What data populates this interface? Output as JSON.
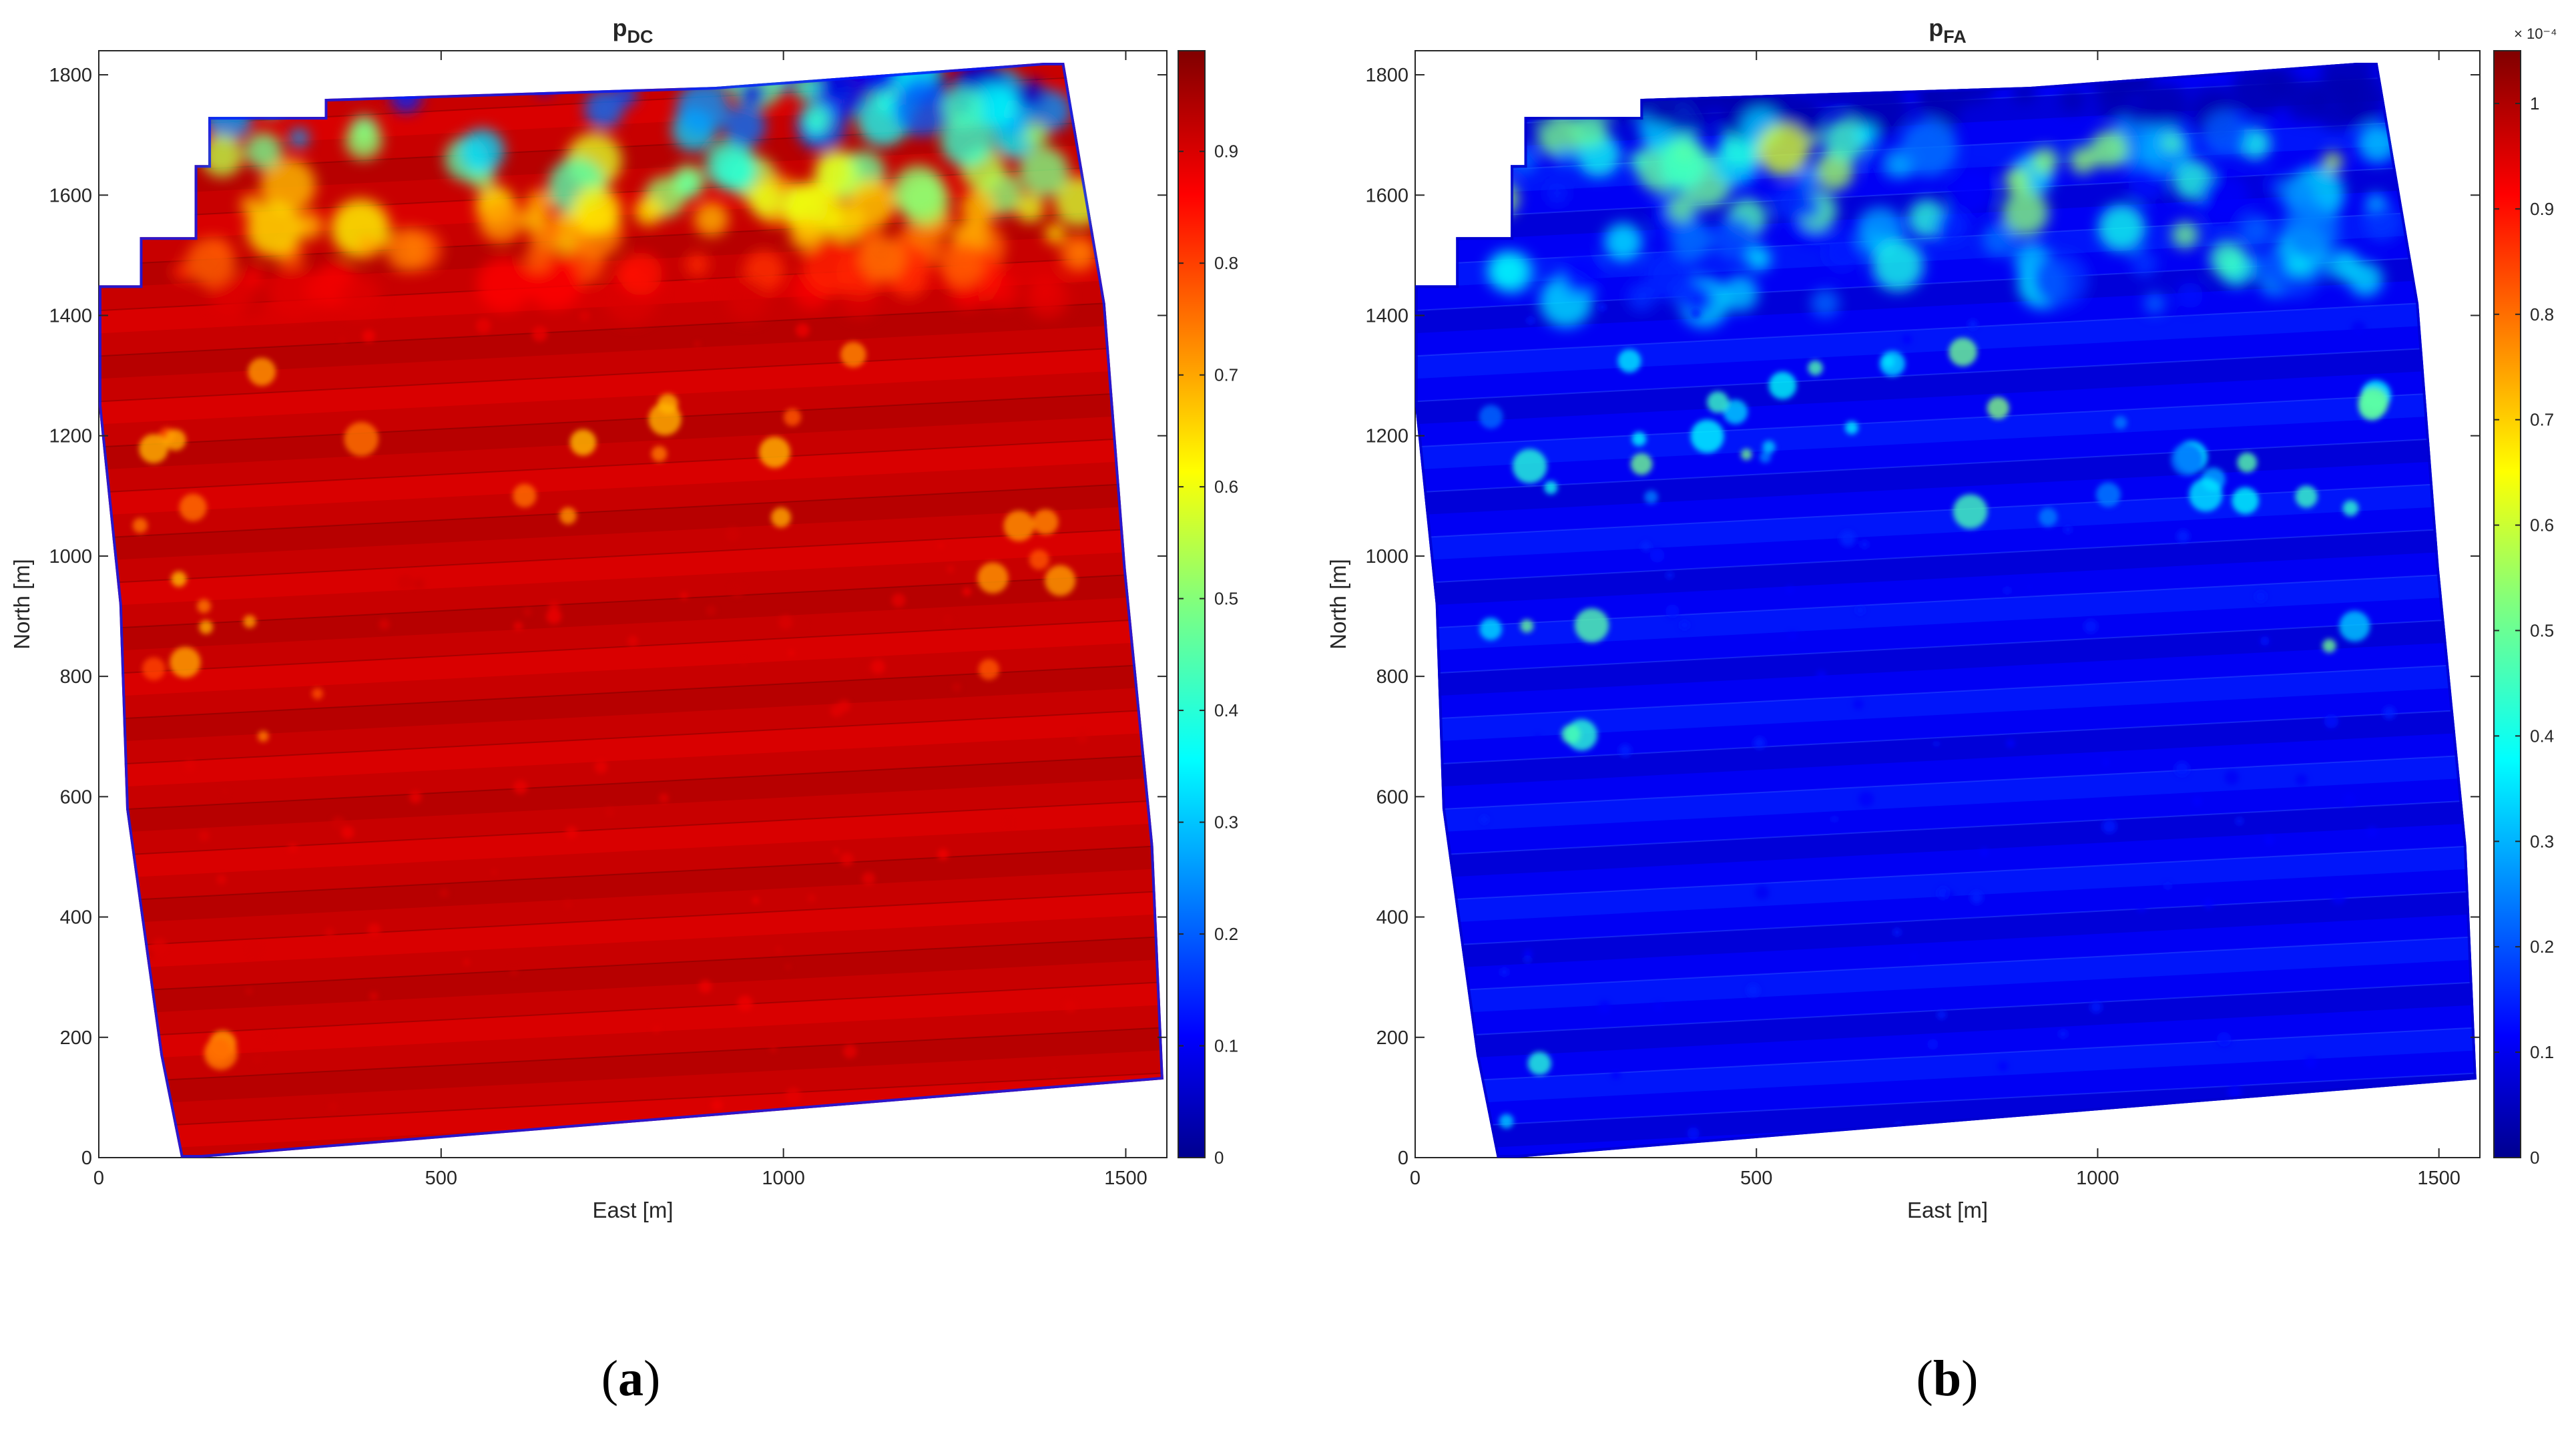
{
  "colors": {
    "axis": "#262626",
    "map_high": "#b0100a",
    "map_low": "#0d2fd8"
  },
  "chart_data": [
    {
      "type": "heatmap",
      "panel_label": "a",
      "title_base": "p",
      "title_sub": "DC",
      "xlabel": "East [m]",
      "ylabel": "North [m]",
      "xlim": [
        0,
        1560
      ],
      "ylim": [
        0,
        1840
      ],
      "xticks": [
        0,
        500,
        1000,
        1500
      ],
      "yticks": [
        0,
        200,
        400,
        600,
        800,
        1000,
        1200,
        1400,
        1600,
        1800
      ],
      "colorbar": {
        "colormap": "jet",
        "min": 0,
        "max": 0.99,
        "ticks": [
          0,
          0.1,
          0.2,
          0.3,
          0.4,
          0.5,
          0.6,
          0.7,
          0.8,
          0.9
        ],
        "tick_labels": [
          "0",
          "0.1",
          "0.2",
          "0.3",
          "0.4",
          "0.5",
          "0.6",
          "0.7",
          "0.8",
          "0.9"
        ],
        "exponent_label": ""
      },
      "field": {
        "base": 0.92,
        "stripe_amplitude": 0.03,
        "north_edge_value": 0.1
      }
    },
    {
      "type": "heatmap",
      "panel_label": "b",
      "title_base": "p",
      "title_sub": "FA",
      "xlabel": "East [m]",
      "ylabel": "North [m]",
      "xlim": [
        0,
        1560
      ],
      "ylim": [
        0,
        1840
      ],
      "xticks": [
        0,
        500,
        1000,
        1500
      ],
      "yticks": [
        0,
        200,
        400,
        600,
        800,
        1000,
        1200,
        1400,
        1600,
        1800
      ],
      "colorbar": {
        "colormap": "jet",
        "min": 0,
        "max": 1.05,
        "ticks": [
          0,
          0.1,
          0.2,
          0.3,
          0.4,
          0.5,
          0.6,
          0.7,
          0.8,
          0.9,
          1
        ],
        "tick_labels": [
          "0",
          "0.1",
          "0.2",
          "0.3",
          "0.4",
          "0.5",
          "0.6",
          "0.7",
          "0.8",
          "0.9",
          "1"
        ],
        "exponent_label": "× 10⁻⁴"
      },
      "field": {
        "base": 0.12,
        "stripe_amplitude": 0.05,
        "north_edge_value": 0.05
      }
    }
  ]
}
